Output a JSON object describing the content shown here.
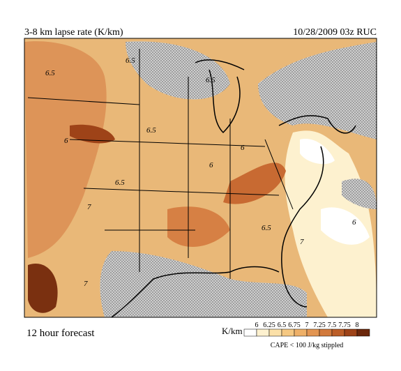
{
  "header": {
    "title": "3-8 km lapse rate (K/km)",
    "date": "10/28/2009  03z  RUC"
  },
  "map": {
    "contour_labels": [
      "6.5",
      "6.5",
      "6",
      "6.5",
      "7",
      "6.5",
      "6.5",
      "6",
      "6",
      "7",
      "6.5",
      "6",
      "7"
    ]
  },
  "footer": {
    "forecast": "12 hour forecast"
  },
  "legend": {
    "unit": "K/km",
    "labels": [
      "6",
      "6.25",
      "6.5",
      "6.75",
      "7",
      "7.25",
      "7.5",
      "7.75",
      "8"
    ],
    "colors": [
      "#ffffff",
      "#fdf1cf",
      "#fbe0a8",
      "#f5c882",
      "#eeb068",
      "#e29552",
      "#d27a3c",
      "#bc5e28",
      "#9e4318",
      "#6b270b"
    ],
    "note": "CAPE < 100 J/kg stippled"
  }
}
